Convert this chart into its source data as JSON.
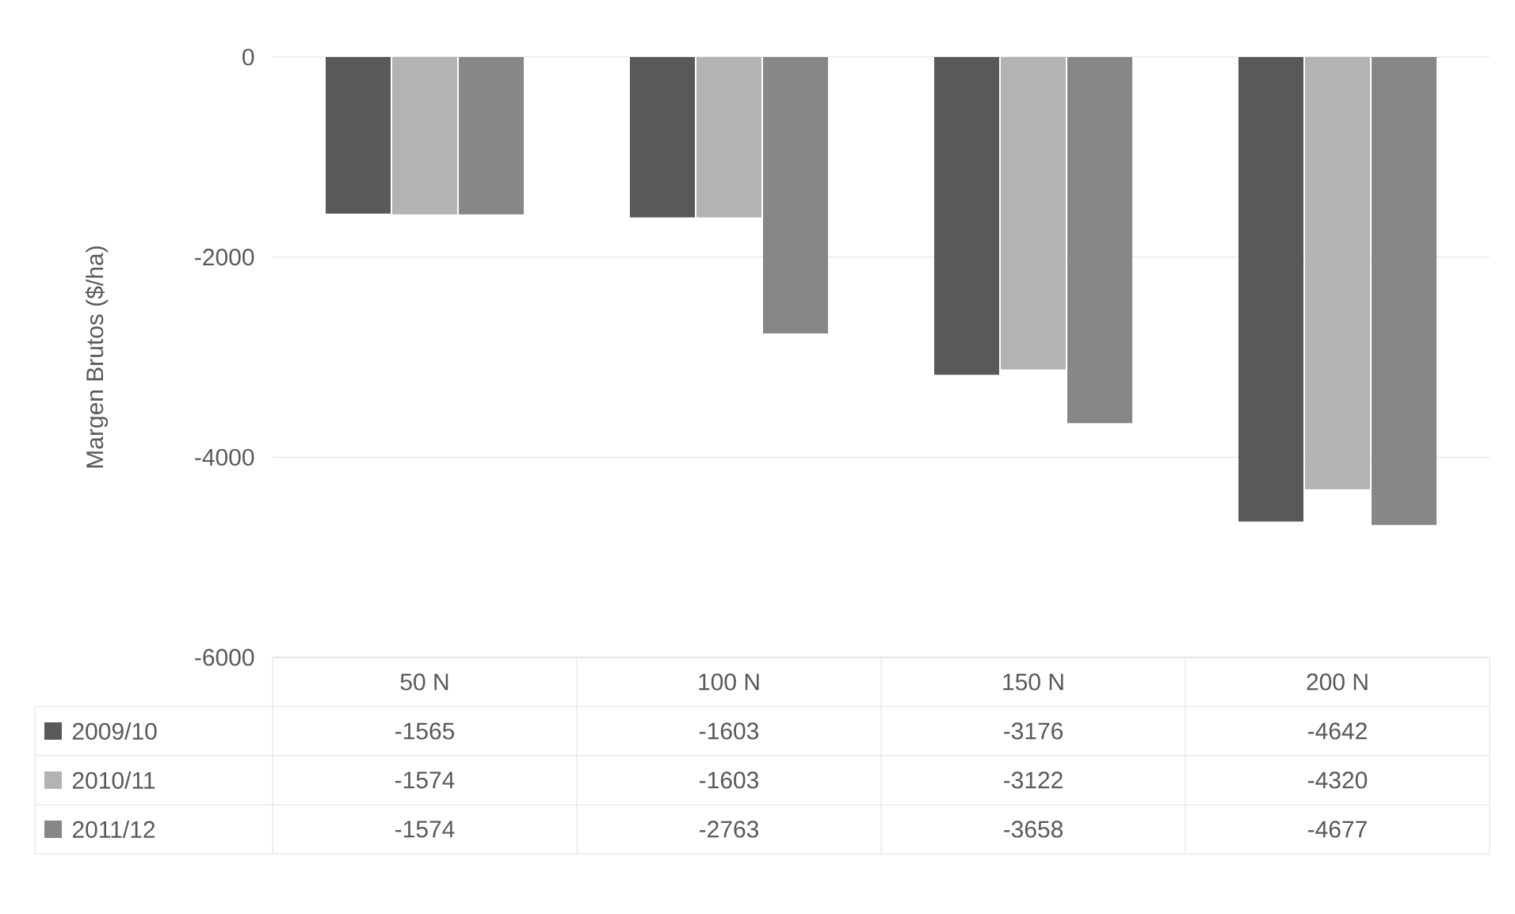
{
  "chart_data": {
    "type": "bar",
    "ylabel": "Margen Brutos ($/ha)",
    "categories": [
      "50 N",
      "100 N",
      "150 N",
      "200 N"
    ],
    "series": [
      {
        "name": "2009/10",
        "color": "#595959",
        "values": [
          -1565,
          -1603,
          -3176,
          -4642
        ]
      },
      {
        "name": "2010/11",
        "color": "#b3b3b3",
        "values": [
          -1574,
          -1603,
          -3122,
          -4320
        ]
      },
      {
        "name": "2011/12",
        "color": "#878787",
        "values": [
          -1574,
          -2763,
          -3658,
          -4677
        ]
      }
    ],
    "ylim": [
      -6000,
      0
    ],
    "yticks": [
      -6000,
      -4000,
      -2000,
      0
    ],
    "grid": "y",
    "legend": "bottom",
    "data_labels": true
  }
}
